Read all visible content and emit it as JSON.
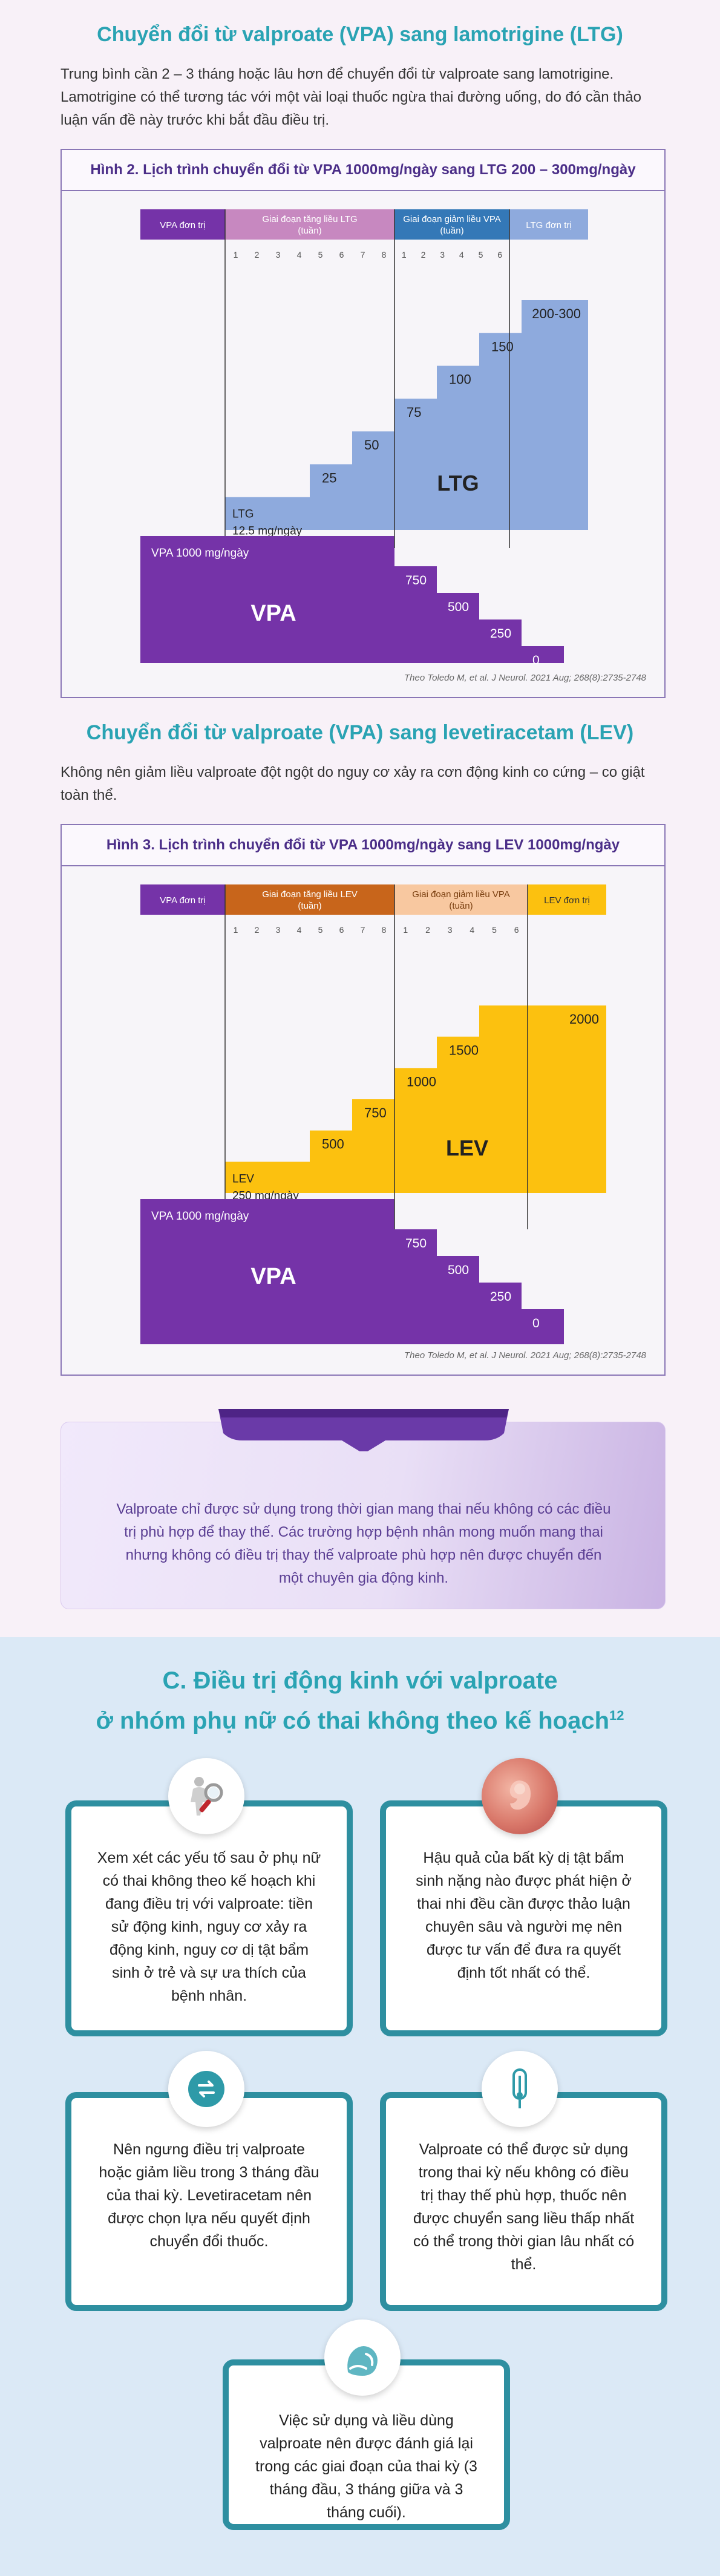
{
  "section_ltg": {
    "title": "Chuyển đổi từ valproate (VPA) sang lamotrigine (LTG)",
    "paragraph": "Trung bình cần 2 – 3 tháng hoặc lâu hơn để chuyển đổi từ valproate sang lamotrigine. Lamotrigine có thể tương tác với một vài loại thuốc ngừa thai đường uống, do đó cần thảo luận vấn đề này trước khi bắt đầu điều trị."
  },
  "figure2": {
    "title": "Hình 2. Lịch trình chuyển đổi từ VPA 1000mg/ngày sang LTG 200 – 300mg/ngày",
    "citation": "Theo Toledo M, et al. J Neurol. 2021 Aug; 268(8):2735-2748",
    "chart_data": {
      "type": "step",
      "colors": {
        "vpa": "#7533a8",
        "new_drug": "#8eaadd",
        "phase1": "#c788c0",
        "phase2": "#3478b7",
        "new_end": "#8eaadd"
      },
      "headers": [
        "VPA đơn trị",
        "Giai đoạn tăng liều LTG (tuần)",
        "Giai đoạn giảm liều VPA (tuần)",
        "LTG đơn trị"
      ],
      "phase1_weeks": [
        "1",
        "2",
        "3",
        "4",
        "5",
        "6",
        "7",
        "8"
      ],
      "phase2_weeks": [
        "1",
        "2",
        "3",
        "4",
        "5",
        "6"
      ],
      "new_drug_name": "LTG",
      "new_drug_steps": [
        12.5,
        25,
        50,
        75,
        100,
        150,
        "200-300"
      ],
      "new_drug_start_label": "LTG",
      "new_drug_start_dose": "12.5 mg/ngày",
      "step_labels": [
        "25",
        "50",
        "75",
        "100",
        "150",
        "200-300"
      ],
      "vpa_name": "VPA",
      "vpa_start_label": "VPA 1000 mg/ngày",
      "vpa_steps": [
        1000,
        750,
        500,
        250,
        0
      ],
      "vpa_step_labels": [
        "750",
        "500",
        "250",
        "0"
      ]
    }
  },
  "section_lev": {
    "title": "Chuyển đổi từ valproate (VPA) sang levetiracetam (LEV)",
    "paragraph": "Không nên giảm liều valproate đột ngột do nguy cơ xảy ra cơn động kinh co cứng – co giật toàn thể."
  },
  "figure3": {
    "title": "Hình 3. Lịch trình chuyển đổi từ VPA 1000mg/ngày sang LEV 1000mg/ngày",
    "citation": "Theo Toledo M, et al. J Neurol. 2021 Aug; 268(8):2735-2748",
    "chart_data": {
      "type": "step",
      "colors": {
        "vpa": "#7533a8",
        "new_drug": "#fcc10f",
        "phase1": "#c8651b",
        "phase2": "#f8c8a0",
        "new_end": "#fcc10f"
      },
      "headers": [
        "VPA đơn trị",
        "Giai đoạn tăng liều LEV (tuần)",
        "Giai đoạn giảm liều VPA (tuần)",
        "LEV đơn trị"
      ],
      "phase1_weeks": [
        "1",
        "2",
        "3",
        "4",
        "5",
        "6",
        "7",
        "8"
      ],
      "phase2_weeks": [
        "1",
        "2",
        "3",
        "4",
        "5",
        "6"
      ],
      "new_drug_name": "LEV",
      "new_drug_steps": [
        250,
        500,
        750,
        1000,
        1500,
        2000
      ],
      "new_drug_start_label": "LEV",
      "new_drug_start_dose": "250 mg/ngày",
      "step_labels": [
        "500",
        "750",
        "1000",
        "1500",
        "2000"
      ],
      "vpa_name": "VPA",
      "vpa_start_label": "VPA 1000 mg/ngày",
      "vpa_steps": [
        1000,
        750,
        500,
        250,
        0
      ],
      "vpa_step_labels": [
        "750",
        "500",
        "250",
        "0"
      ]
    }
  },
  "callout": {
    "text": "Valproate chỉ được sử dụng trong thời gian mang thai nếu không có các điều trị phù hợp để thay thế. Các trường hợp bệnh nhân mong muốn mang thai nhưng không có điều trị thay thế valproate phù hợp nên được chuyển đến một chuyên gia động kinh."
  },
  "section_c": {
    "title_line1": "C. Điều trị động kinh với valproate",
    "title_line2": "ở nhóm phụ nữ có thai không theo kế hoạch",
    "title_sup": "12",
    "cards": [
      {
        "icon": "magnifier-person-icon",
        "text": "Xem xét các yếu tố sau ở phụ nữ có thai không theo kế hoạch khi đang điều trị với valproate: tiền sử động kinh, nguy cơ xảy ra động kinh, nguy cơ dị tật bẩm sinh ở trẻ và sự ưa thích của bệnh nhân."
      },
      {
        "icon": "fetus-icon",
        "text": "Hậu quả của bất kỳ dị tật bẩm sinh nặng nào được phát hiện ở thai nhi đều cần được thảo luận chuyên sâu và người mẹ nên được tư vấn để đưa ra quyết định tốt nhất có thể."
      },
      {
        "icon": "switch-arrows-icon",
        "text": "Nên ngưng điều trị valproate hoặc giảm liều trong 3 tháng đầu của thai kỳ. Levetiracetam nên được chọn lựa nếu quyết định chuyển đổi thuốc."
      },
      {
        "icon": "thermometer-icon",
        "text": "Valproate có thể được sử dụng trong thai kỳ nếu không có điều trị thay thế phù hợp, thuốc nên được chuyển sang liều thấp nhất có thể trong thời gian lâu nhất có thể."
      },
      {
        "icon": "pregnant-belly-icon",
        "text": "Việc sử dụng và liều dùng valproate nên được đánh giá lại trong các giai đoạn của thai kỳ (3 tháng đầu, 3 tháng giữa và 3 tháng cuối)."
      }
    ]
  }
}
